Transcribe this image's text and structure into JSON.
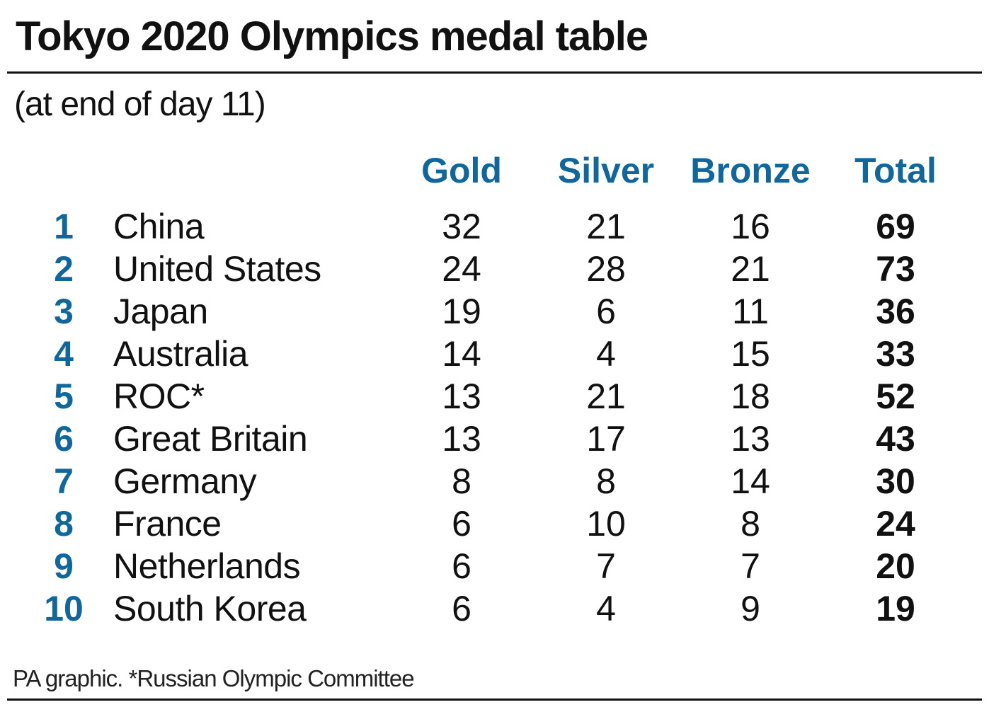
{
  "title": "Tokyo 2020 Olympics medal table",
  "subtitle": "(at end of day 11)",
  "headers": {
    "gold": "Gold",
    "silver": "Silver",
    "bronze": "Bronze",
    "total": "Total"
  },
  "accent_color": "#10679e",
  "rows": [
    {
      "rank": "1",
      "country": "China",
      "gold": "32",
      "silver": "21",
      "bronze": "16",
      "total": "69"
    },
    {
      "rank": "2",
      "country": "United States",
      "gold": "24",
      "silver": "28",
      "bronze": "21",
      "total": "73"
    },
    {
      "rank": "3",
      "country": "Japan",
      "gold": "19",
      "silver": "6",
      "bronze": "11",
      "total": "36"
    },
    {
      "rank": "4",
      "country": "Australia",
      "gold": "14",
      "silver": "4",
      "bronze": "15",
      "total": "33"
    },
    {
      "rank": "5",
      "country": "ROC*",
      "gold": "13",
      "silver": "21",
      "bronze": "18",
      "total": "52"
    },
    {
      "rank": "6",
      "country": "Great Britain",
      "gold": "13",
      "silver": "17",
      "bronze": "13",
      "total": "43"
    },
    {
      "rank": "7",
      "country": "Germany",
      "gold": "8",
      "silver": "8",
      "bronze": "14",
      "total": "30"
    },
    {
      "rank": "8",
      "country": "France",
      "gold": "6",
      "silver": "10",
      "bronze": "8",
      "total": "24"
    },
    {
      "rank": "9",
      "country": "Netherlands",
      "gold": "6",
      "silver": "7",
      "bronze": "7",
      "total": "20"
    },
    {
      "rank": "10",
      "country": "South Korea",
      "gold": "6",
      "silver": "4",
      "bronze": "9",
      "total": "19"
    }
  ],
  "footer": "PA graphic. *Russian Olympic Committee"
}
